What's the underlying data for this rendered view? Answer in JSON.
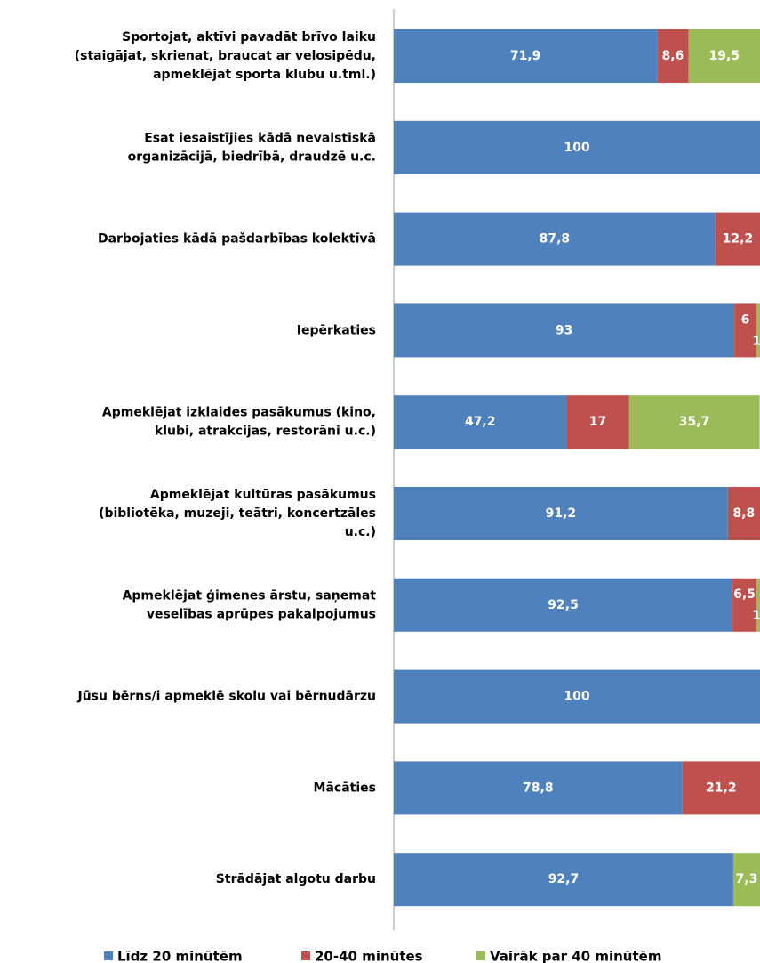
{
  "chart_data": {
    "type": "stacked-bar-horizontal",
    "categories": [
      [
        "Sportojat, aktīvi pavadāt brīvo laiku",
        "(staigājat, skrienat, braucat ar velosipēdu,",
        "apmeklējat sporta klubu u.tml.)"
      ],
      [
        "Esat iesaistījies kādā nevalstiskā",
        "organizācijā, biedrībā, draudzē u.c."
      ],
      [
        "Darbojaties kādā pašdarbības kolektīvā"
      ],
      [
        "Iepērkaties"
      ],
      [
        "Apmeklējat izklaides pasākumus (kino,",
        "klubi, atrakcijas, restorāni u.c.)"
      ],
      [
        "Apmeklējat kultūras pasākumus",
        "(bibliotēka, muzeji, teātri, koncertzāles",
        "u.c.)"
      ],
      [
        "Apmeklējat ģimenes ārstu, saņemat",
        "veselības aprūpes pakalpojumus"
      ],
      [
        "Jūsu bērns/i apmeklē skolu vai bērnudārzu"
      ],
      [
        "Mācāties"
      ],
      [
        "Strādājat algotu darbu"
      ]
    ],
    "series": [
      {
        "name": "Līdz 20  minūtēm",
        "color": "#4f81bd",
        "values": [
          71.9,
          100,
          87.8,
          93,
          47.2,
          91.2,
          92.5,
          100,
          78.8,
          92.7
        ],
        "value_labels": [
          "71,9",
          "100",
          "87,8",
          "93",
          "47,2",
          "91,2",
          "92,5",
          "100",
          "78,8",
          "92,7"
        ]
      },
      {
        "name": "20-40  minūtes",
        "color": "#c0504d",
        "values": [
          8.6,
          null,
          12.2,
          6,
          17,
          8.8,
          6.5,
          null,
          21.2,
          null
        ],
        "value_labels": [
          "8,6",
          null,
          "12,2",
          "6",
          "17",
          "8,8",
          "6,5",
          null,
          "21,2",
          null
        ]
      },
      {
        "name": "Vairāk par 40 minūtēm",
        "color": "#9bbb59",
        "values": [
          19.5,
          null,
          null,
          1,
          35.7,
          null,
          1,
          null,
          null,
          7.3
        ],
        "value_labels": [
          "19,5",
          null,
          null,
          "1",
          "35,7",
          null,
          "1",
          null,
          null,
          "7,3"
        ]
      }
    ],
    "xlim": [
      0,
      100
    ]
  }
}
